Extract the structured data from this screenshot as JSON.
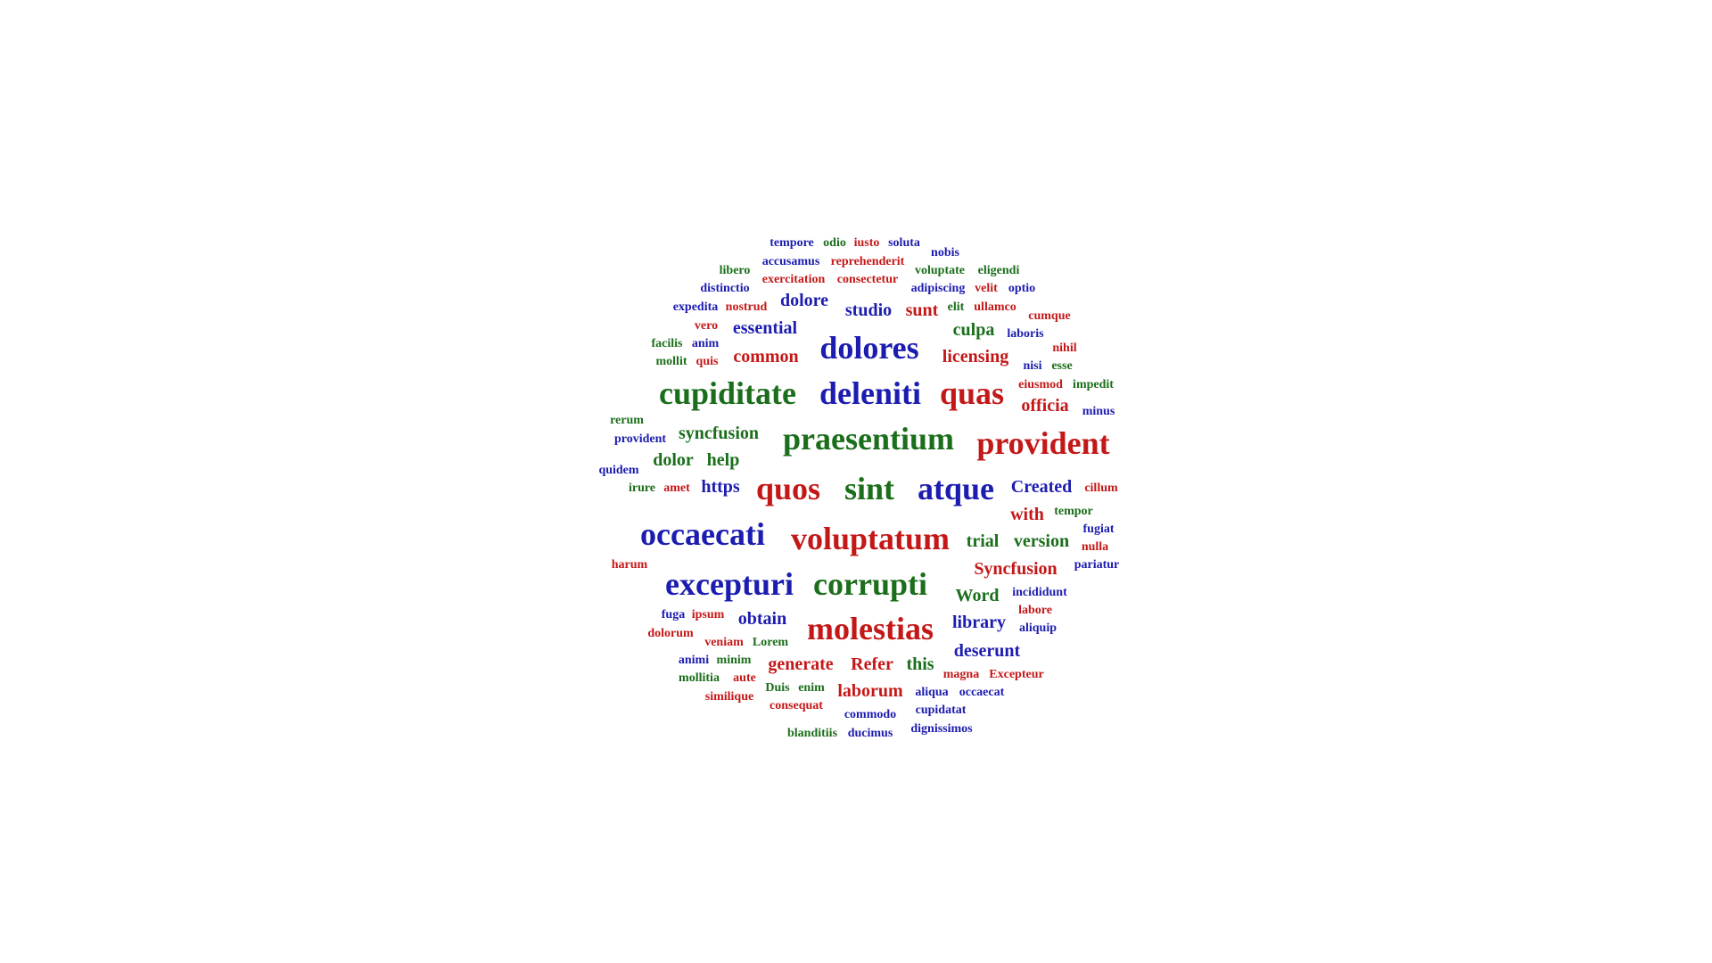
{
  "colors": {
    "green": "#1b6e1b",
    "blue": "#1c1cb0",
    "red": "#c41818",
    "background": "#ffffff"
  },
  "words": [
    {
      "text": "tempore",
      "color": "blue"
    },
    {
      "text": "odio",
      "color": "green"
    },
    {
      "text": "iusto",
      "color": "red"
    },
    {
      "text": "soluta",
      "color": "blue"
    },
    {
      "text": "nobis",
      "color": "blue"
    },
    {
      "text": "accusamus",
      "color": "blue"
    },
    {
      "text": "reprehenderit",
      "color": "red"
    },
    {
      "text": "libero",
      "color": "green"
    },
    {
      "text": "voluptate",
      "color": "green"
    },
    {
      "text": "eligendi",
      "color": "green"
    },
    {
      "text": "exercitation",
      "color": "red"
    },
    {
      "text": "consectetur",
      "color": "red"
    },
    {
      "text": "distinctio",
      "color": "blue"
    },
    {
      "text": "adipiscing",
      "color": "blue"
    },
    {
      "text": "velit",
      "color": "red"
    },
    {
      "text": "optio",
      "color": "blue"
    },
    {
      "text": "dolore",
      "color": "blue"
    },
    {
      "text": "expedita",
      "color": "blue"
    },
    {
      "text": "nostrud",
      "color": "red"
    },
    {
      "text": "studio",
      "color": "blue"
    },
    {
      "text": "sunt",
      "color": "red"
    },
    {
      "text": "elit",
      "color": "green"
    },
    {
      "text": "ullamco",
      "color": "red"
    },
    {
      "text": "cumque",
      "color": "red"
    },
    {
      "text": "essential",
      "color": "blue"
    },
    {
      "text": "culpa",
      "color": "green"
    },
    {
      "text": "laboris",
      "color": "blue"
    },
    {
      "text": "vero",
      "color": "red"
    },
    {
      "text": "dolores",
      "color": "blue"
    },
    {
      "text": "facilis",
      "color": "green"
    },
    {
      "text": "anim",
      "color": "blue"
    },
    {
      "text": "nihil",
      "color": "red"
    },
    {
      "text": "common",
      "color": "red"
    },
    {
      "text": "licensing",
      "color": "red"
    },
    {
      "text": "mollit",
      "color": "green"
    },
    {
      "text": "quis",
      "color": "red"
    },
    {
      "text": "nisi",
      "color": "blue"
    },
    {
      "text": "esse",
      "color": "green"
    },
    {
      "text": "cupiditate",
      "color": "green"
    },
    {
      "text": "deleniti",
      "color": "blue"
    },
    {
      "text": "quas",
      "color": "red"
    },
    {
      "text": "eiusmod",
      "color": "red"
    },
    {
      "text": "impedit",
      "color": "green"
    },
    {
      "text": "officia",
      "color": "red"
    },
    {
      "text": "minus",
      "color": "blue"
    },
    {
      "text": "rerum",
      "color": "green"
    },
    {
      "text": "syncfusion",
      "color": "green"
    },
    {
      "text": "praesentium",
      "color": "green"
    },
    {
      "text": "provident",
      "color": "blue"
    },
    {
      "text": "provident",
      "color": "red"
    },
    {
      "text": "dolor",
      "color": "green"
    },
    {
      "text": "help",
      "color": "green"
    },
    {
      "text": "quidem",
      "color": "blue"
    },
    {
      "text": "irure",
      "color": "green"
    },
    {
      "text": "amet",
      "color": "red"
    },
    {
      "text": "https",
      "color": "blue"
    },
    {
      "text": "quos",
      "color": "red"
    },
    {
      "text": "sint",
      "color": "green"
    },
    {
      "text": "atque",
      "color": "blue"
    },
    {
      "text": "Created",
      "color": "blue"
    },
    {
      "text": "cillum",
      "color": "red"
    },
    {
      "text": "with",
      "color": "red"
    },
    {
      "text": "tempor",
      "color": "green"
    },
    {
      "text": "fugiat",
      "color": "blue"
    },
    {
      "text": "occaecati",
      "color": "blue"
    },
    {
      "text": "voluptatum",
      "color": "red"
    },
    {
      "text": "trial",
      "color": "green"
    },
    {
      "text": "version",
      "color": "green"
    },
    {
      "text": "nulla",
      "color": "red"
    },
    {
      "text": "harum",
      "color": "red"
    },
    {
      "text": "Syncfusion",
      "color": "red"
    },
    {
      "text": "pariatur",
      "color": "blue"
    },
    {
      "text": "excepturi",
      "color": "blue"
    },
    {
      "text": "corrupti",
      "color": "green"
    },
    {
      "text": "Word",
      "color": "green"
    },
    {
      "text": "incididunt",
      "color": "blue"
    },
    {
      "text": "fuga",
      "color": "blue"
    },
    {
      "text": "ipsum",
      "color": "red"
    },
    {
      "text": "obtain",
      "color": "blue"
    },
    {
      "text": "molestias",
      "color": "red"
    },
    {
      "text": "library",
      "color": "blue"
    },
    {
      "text": "labore",
      "color": "red"
    },
    {
      "text": "dolorum",
      "color": "red"
    },
    {
      "text": "aliquip",
      "color": "blue"
    },
    {
      "text": "veniam",
      "color": "red"
    },
    {
      "text": "Lorem",
      "color": "green"
    },
    {
      "text": "deserunt",
      "color": "blue"
    },
    {
      "text": "animi",
      "color": "blue"
    },
    {
      "text": "minim",
      "color": "green"
    },
    {
      "text": "generate",
      "color": "red"
    },
    {
      "text": "Refer",
      "color": "red"
    },
    {
      "text": "this",
      "color": "green"
    },
    {
      "text": "mollitia",
      "color": "green"
    },
    {
      "text": "aute",
      "color": "red"
    },
    {
      "text": "magna",
      "color": "red"
    },
    {
      "text": "Excepteur",
      "color": "red"
    },
    {
      "text": "Duis",
      "color": "green"
    },
    {
      "text": "enim",
      "color": "green"
    },
    {
      "text": "laborum",
      "color": "red"
    },
    {
      "text": "aliqua",
      "color": "blue"
    },
    {
      "text": "occaecat",
      "color": "blue"
    },
    {
      "text": "similique",
      "color": "red"
    },
    {
      "text": "consequat",
      "color": "red"
    },
    {
      "text": "commodo",
      "color": "blue"
    },
    {
      "text": "cupidatat",
      "color": "blue"
    },
    {
      "text": "blanditiis",
      "color": "green"
    },
    {
      "text": "ducimus",
      "color": "blue"
    },
    {
      "text": "dignissimos",
      "color": "blue"
    }
  ]
}
